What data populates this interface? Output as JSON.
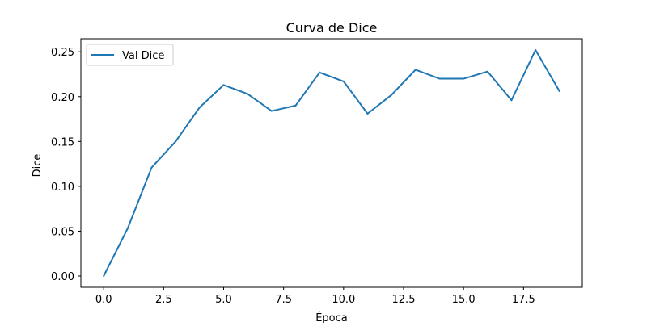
{
  "chart_data": {
    "type": "line",
    "title": "Curva de Dice",
    "xlabel": "Época",
    "ylabel": "Dice",
    "xlim": [
      -0.95,
      19.95
    ],
    "ylim": [
      -0.0126,
      0.2646
    ],
    "xticks": [
      0.0,
      2.5,
      5.0,
      7.5,
      10.0,
      12.5,
      15.0,
      17.5
    ],
    "xtick_labels": [
      "0.0",
      "2.5",
      "5.0",
      "7.5",
      "10.0",
      "12.5",
      "15.0",
      "17.5"
    ],
    "yticks": [
      0.0,
      0.05,
      0.1,
      0.15,
      0.2,
      0.25
    ],
    "ytick_labels": [
      "0.00",
      "0.05",
      "0.10",
      "0.15",
      "0.20",
      "0.25"
    ],
    "grid": false,
    "legend_position": "upper-left",
    "series": [
      {
        "name": "Val Dice",
        "color": "#1f77b4",
        "x": [
          0,
          1,
          2,
          3,
          4,
          5,
          6,
          7,
          8,
          9,
          10,
          11,
          12,
          13,
          14,
          15,
          16,
          17,
          18,
          19
        ],
        "values": [
          0.0,
          0.053,
          0.121,
          0.15,
          0.188,
          0.213,
          0.203,
          0.184,
          0.19,
          0.227,
          0.217,
          0.181,
          0.202,
          0.23,
          0.22,
          0.22,
          0.228,
          0.196,
          0.252,
          0.206
        ]
      }
    ]
  }
}
